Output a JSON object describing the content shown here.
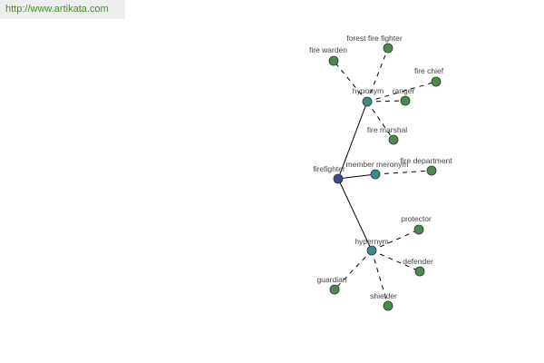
{
  "header": {
    "url": "http://www.artikata.com"
  },
  "nodes": [
    {
      "label": "firefighter"
    },
    {
      "label": "hyponym"
    },
    {
      "label": "member meronym"
    },
    {
      "label": "hypernym"
    },
    {
      "label": "fire warden"
    },
    {
      "label": "forest fire fighter"
    },
    {
      "label": "fire chief"
    },
    {
      "label": "ranger"
    },
    {
      "label": "fire marshal"
    },
    {
      "label": "fire department"
    },
    {
      "label": "protector"
    },
    {
      "label": "defender"
    },
    {
      "label": "shielder"
    },
    {
      "label": "guardian"
    }
  ]
}
